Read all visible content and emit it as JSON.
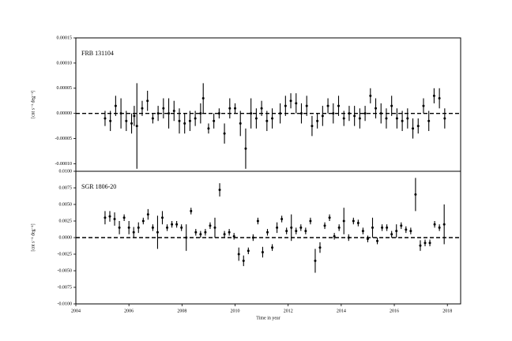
{
  "chart_data": [
    {
      "type": "errorbar",
      "label": "FRB 131104",
      "color": "#000000",
      "reference_line": 0,
      "xlim": [
        2004,
        2018.5
      ],
      "ylim": [
        -0.000115,
        0.00015
      ],
      "yticks": [
        {
          "value": 0.00015,
          "label": "0.00015"
        },
        {
          "value": 0.0001,
          "label": "0.00010"
        },
        {
          "value": 5e-05,
          "label": "0.00005"
        },
        {
          "value": 0,
          "label": "0.00000"
        },
        {
          "value": -5e-05,
          "label": "-0.00005"
        },
        {
          "value": -0.0001,
          "label": "-0.00010"
        }
      ],
      "ylabel": "[cnt s⁻¹ deg⁻¹]",
      "x": [
        2005.1,
        2005.3,
        2005.5,
        2005.7,
        2005.9,
        2006.1,
        2006.2,
        2006.3,
        2006.5,
        2006.7,
        2006.9,
        2007.1,
        2007.3,
        2007.5,
        2007.7,
        2007.9,
        2008.1,
        2008.3,
        2008.5,
        2008.7,
        2008.8,
        2009.0,
        2009.2,
        2009.4,
        2009.6,
        2009.8,
        2010.0,
        2010.2,
        2010.4,
        2010.6,
        2010.8,
        2011.0,
        2011.2,
        2011.4,
        2011.7,
        2011.9,
        2012.1,
        2012.3,
        2012.5,
        2012.7,
        2012.9,
        2013.1,
        2013.3,
        2013.5,
        2013.7,
        2013.9,
        2014.1,
        2014.3,
        2014.5,
        2014.7,
        2014.9,
        2015.1,
        2015.3,
        2015.5,
        2015.7,
        2015.9,
        2016.1,
        2016.3,
        2016.5,
        2016.7,
        2016.9,
        2017.1,
        2017.3,
        2017.5,
        2017.7,
        2017.9
      ],
      "values": [
        -1e-05,
        -1.5e-05,
        1.5e-05,
        0,
        -1.5e-05,
        -2e-05,
        -5e-06,
        -2.5e-05,
        1e-05,
        2.5e-05,
        -1e-05,
        0,
        1e-05,
        0,
        5e-06,
        -1.5e-05,
        -2e-05,
        -1.5e-05,
        -1e-05,
        0,
        3e-05,
        -3e-05,
        -1.5e-05,
        0,
        -4e-05,
        1e-05,
        1e-05,
        -2e-05,
        -7e-05,
        0,
        -1e-05,
        1e-05,
        -1.5e-05,
        -1e-05,
        0,
        1.5e-05,
        2.5e-05,
        2e-05,
        0,
        1.5e-05,
        -2.5e-05,
        -1.5e-05,
        -5e-06,
        1.5e-05,
        0,
        1.5e-05,
        -1e-05,
        0,
        -5e-06,
        -1e-05,
        0,
        3.5e-05,
        1e-05,
        0,
        -1e-05,
        1.5e-05,
        -1e-05,
        -1.5e-05,
        -1e-05,
        -3e-05,
        -2.5e-05,
        1.5e-05,
        -1.5e-05,
        3.5e-05,
        3e-05,
        -1e-05
      ],
      "errors": [
        1.5e-05,
        2e-05,
        2e-05,
        3e-05,
        2e-05,
        2e-05,
        2e-05,
        8.5e-05,
        1.5e-05,
        2e-05,
        1e-05,
        1.5e-05,
        2e-05,
        3e-05,
        2e-05,
        2.5e-05,
        2e-05,
        2e-05,
        1.5e-05,
        2e-05,
        3e-05,
        1e-05,
        1.5e-05,
        1e-05,
        2e-05,
        2e-05,
        1e-05,
        2.5e-05,
        4e-05,
        3e-05,
        2e-05,
        1.5e-05,
        2e-05,
        2e-05,
        2e-05,
        2e-05,
        1.5e-05,
        2e-05,
        2e-05,
        2e-05,
        2e-05,
        1.5e-05,
        2e-05,
        1.5e-05,
        2e-05,
        2e-05,
        1.5e-05,
        1.5e-05,
        2e-05,
        2e-05,
        1.5e-05,
        1.5e-05,
        2e-05,
        2e-05,
        2e-05,
        2e-05,
        2e-05,
        2e-05,
        2e-05,
        2e-05,
        1.5e-05,
        1.5e-05,
        2e-05,
        1.5e-05,
        2e-05,
        2e-05
      ]
    },
    {
      "type": "errorbar",
      "label": "SGR 1806-20",
      "color": "#000000",
      "reference_line": 0,
      "xlim": [
        2004,
        2018.5
      ],
      "ylim": [
        -0.01,
        0.01
      ],
      "xticks": [
        2004,
        2006,
        2008,
        2010,
        2012,
        2014,
        2016,
        2018
      ],
      "xlabel": "Time in year",
      "yticks": [
        {
          "value": 0.01,
          "label": "0.0100"
        },
        {
          "value": 0.0075,
          "label": "0.0075"
        },
        {
          "value": 0.005,
          "label": "0.0050"
        },
        {
          "value": 0.0025,
          "label": "0.0025"
        },
        {
          "value": 0,
          "label": "0.0000"
        },
        {
          "value": -0.0025,
          "label": "-0.0025"
        },
        {
          "value": -0.005,
          "label": "-0.0050"
        },
        {
          "value": -0.0075,
          "label": "-0.0075"
        },
        {
          "value": -0.01,
          "label": "-0.0100"
        }
      ],
      "ylabel": "[cnt s⁻¹ deg⁻¹]",
      "x": [
        2005.1,
        2005.28,
        2005.46,
        2005.64,
        2005.82,
        2006.0,
        2006.18,
        2006.36,
        2006.54,
        2006.72,
        2006.9,
        2007.08,
        2007.26,
        2007.44,
        2007.62,
        2007.8,
        2007.98,
        2008.16,
        2008.34,
        2008.52,
        2008.7,
        2008.88,
        2009.06,
        2009.24,
        2009.42,
        2009.6,
        2009.78,
        2009.96,
        2010.14,
        2010.32,
        2010.5,
        2010.68,
        2010.86,
        2011.04,
        2011.22,
        2011.4,
        2011.58,
        2011.76,
        2011.94,
        2012.12,
        2012.3,
        2012.48,
        2012.66,
        2012.84,
        2013.02,
        2013.2,
        2013.38,
        2013.56,
        2013.74,
        2013.92,
        2014.1,
        2014.28,
        2014.46,
        2014.64,
        2014.82,
        2015.0,
        2015.18,
        2015.36,
        2015.54,
        2015.72,
        2015.9,
        2016.08,
        2016.26,
        2016.44,
        2016.62,
        2016.8,
        2016.98,
        2017.16,
        2017.34,
        2017.52,
        2017.7,
        2017.88
      ],
      "values": [
        0.003,
        0.0032,
        0.0028,
        0.0015,
        0.003,
        0.0015,
        0.0008,
        0.0015,
        0.0025,
        0.0035,
        0.0015,
        0.0008,
        0.003,
        0.0015,
        0.002,
        0.002,
        0.0015,
        0,
        0.004,
        0.0008,
        0.0005,
        0.0008,
        0.0018,
        0.0015,
        0.0072,
        0.0005,
        0.0008,
        0.0002,
        -0.0025,
        -0.0035,
        -0.002,
        0,
        0.0025,
        -0.0022,
        0.0008,
        -0.0015,
        0.0015,
        0.0028,
        0.001,
        0.0015,
        0.001,
        0.0015,
        0.001,
        0.0025,
        -0.0035,
        -0.0015,
        0.0018,
        0.003,
        0.0002,
        0.0015,
        0.0025,
        0,
        0.0025,
        0.0022,
        0.001,
        -0.0002,
        0.0015,
        -0.0005,
        0.0015,
        0.0015,
        0.0005,
        0.001,
        0.0018,
        0.0012,
        0.001,
        0.0065,
        -0.0012,
        -0.0008,
        -0.0008,
        0.002,
        0.0015,
        0.002
      ],
      "errors": [
        0.001,
        0.0008,
        0.001,
        0.001,
        0.0005,
        0.001,
        0.0008,
        0.0008,
        0.0005,
        0.0008,
        0.0005,
        0.0025,
        0.001,
        0.0005,
        0.0005,
        0.0005,
        0.0005,
        0.002,
        0.0005,
        0.0005,
        0.0005,
        0.0005,
        0.0005,
        0.0015,
        0.001,
        0.0005,
        0.0005,
        0.0005,
        0.001,
        0.0008,
        0.0005,
        0.0005,
        0.0005,
        0.0008,
        0.0005,
        0.0005,
        0.0008,
        0.0005,
        0.0005,
        0.002,
        0.0005,
        0.0005,
        0.0005,
        0.0005,
        0.0018,
        0.0008,
        0.0005,
        0.0005,
        0.0005,
        0.0005,
        0.002,
        0.0005,
        0.0005,
        0.0005,
        0.0005,
        0.0005,
        0.0015,
        0.0005,
        0.0005,
        0.0005,
        0.0005,
        0.001,
        0.0005,
        0.0005,
        0.0005,
        0.0025,
        0.0008,
        0.0005,
        0.0005,
        0.0005,
        0.0005,
        0.003
      ]
    }
  ]
}
